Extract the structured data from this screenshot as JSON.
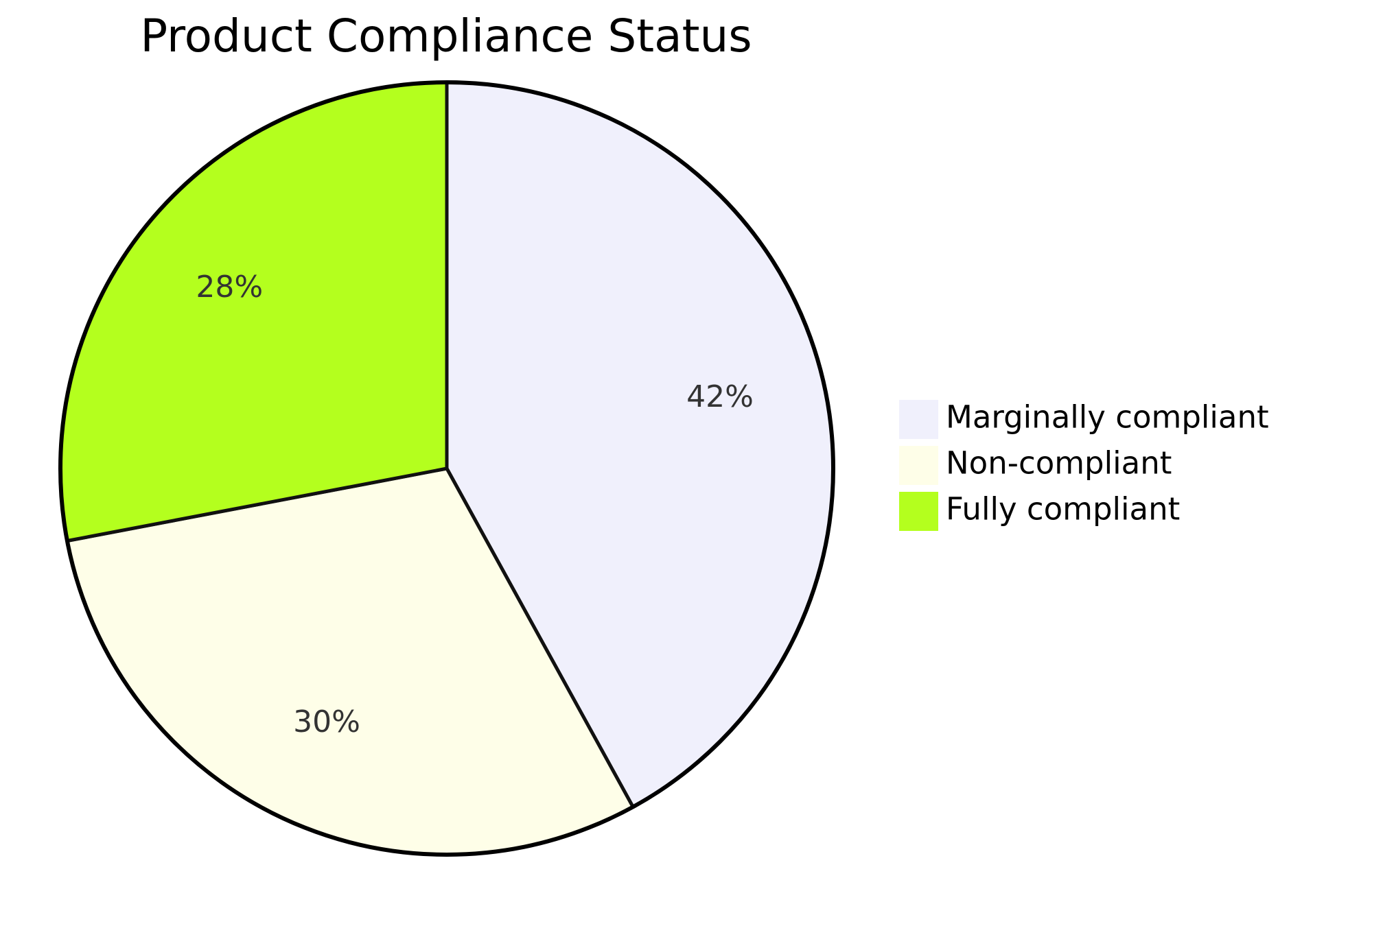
{
  "chart_data": {
    "type": "pie",
    "title": "Product Compliance Status",
    "slices": [
      {
        "label": "Marginally compliant",
        "value": 42,
        "display": "42%",
        "color": "#f0f0fc"
      },
      {
        "label": "Non-compliant",
        "value": 30,
        "display": "30%",
        "color": "#fefee8"
      },
      {
        "label": "Fully compliant",
        "value": 28,
        "display": "28%",
        "color": "#b4ff1e"
      }
    ],
    "start_angle": "12 o'clock",
    "direction": "clockwise",
    "legend_position": "right"
  }
}
